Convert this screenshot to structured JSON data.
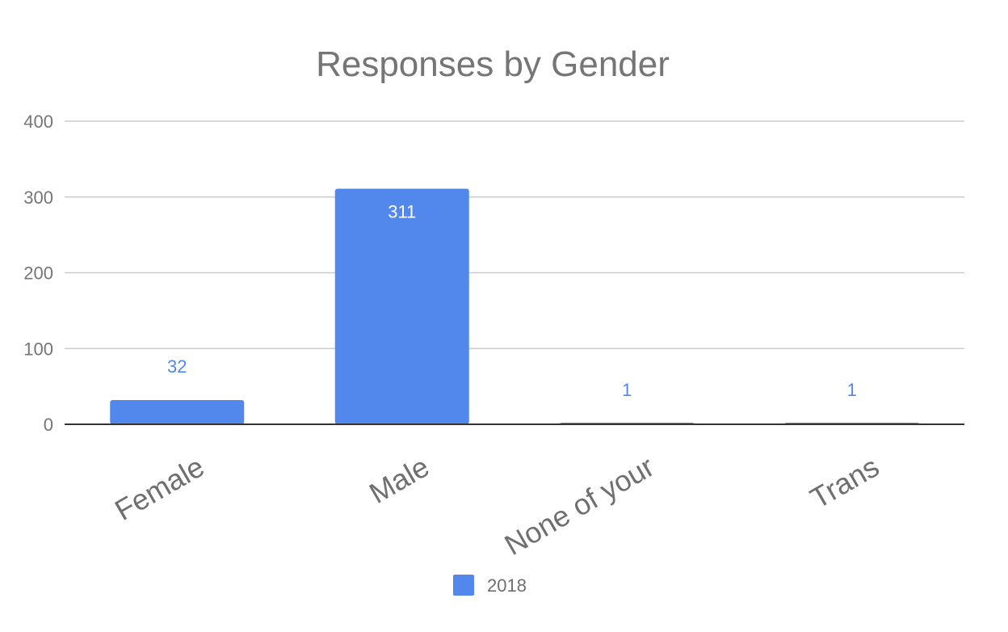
{
  "chart_data": {
    "type": "bar",
    "title": "Responses by Gender",
    "categories": [
      "Female",
      "Male",
      "None of your",
      "Trans"
    ],
    "series": [
      {
        "name": "2018",
        "values": [
          32,
          311,
          1,
          1
        ]
      }
    ],
    "data_labels": [
      "32",
      "311",
      "1",
      "1"
    ],
    "ylim": [
      0,
      400
    ],
    "yticks": [
      "0",
      "100",
      "200",
      "300",
      "400"
    ],
    "xlabel": "",
    "ylabel": "",
    "grid": true,
    "legend_position": "bottom",
    "colors": {
      "bar": "#5288ec",
      "grid": "#cccccc",
      "axis": "#333333"
    }
  }
}
